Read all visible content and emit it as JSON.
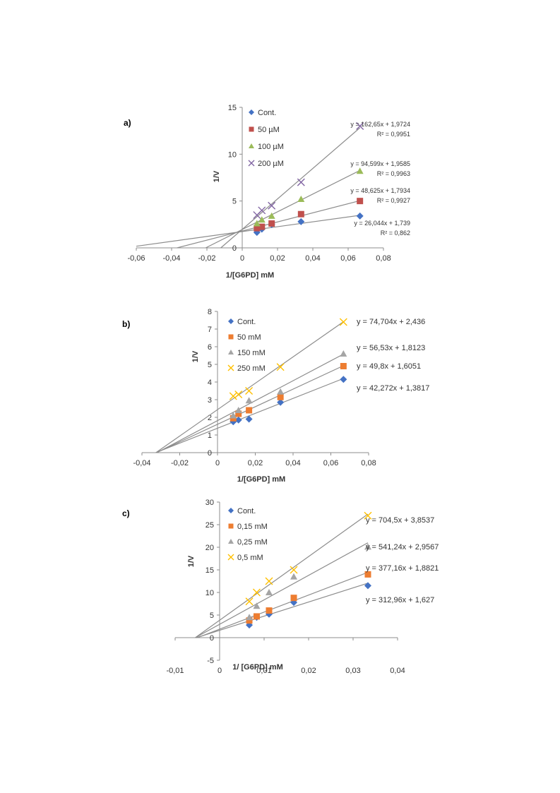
{
  "chart_data": [
    {
      "type": "scatter",
      "panel_label": "a)",
      "xlabel": "1/[G6PD] mM",
      "ylabel": "1/V",
      "xlim": [
        -0.06,
        0.08
      ],
      "ylim": [
        0,
        15
      ],
      "xticks": [
        "-0,06",
        "-0,04",
        "-0,02",
        "0",
        "0,02",
        "0,04",
        "0,06",
        "0,08"
      ],
      "yticks": [
        "0",
        "5",
        "10",
        "15"
      ],
      "grid": false,
      "legend_position": "top-left",
      "series": [
        {
          "name": "Cont.",
          "marker": "diamond",
          "color": "#4472c4",
          "x": [
            0.00833,
            0.01111,
            0.01667,
            0.03333,
            0.06667
          ],
          "y": [
            1.65,
            2.0,
            2.5,
            2.8,
            3.4
          ],
          "trend": {
            "slope": 26.044,
            "intercept": 1.739
          },
          "equation": "y = 26,044x + 1,739",
          "r2": "R² = 0,862"
        },
        {
          "name": "50 µM",
          "marker": "square",
          "color": "#c0504d",
          "x": [
            0.00833,
            0.01111,
            0.01667,
            0.03333,
            0.06667
          ],
          "y": [
            2.1,
            2.25,
            2.6,
            3.6,
            5.0
          ],
          "trend": {
            "slope": 48.625,
            "intercept": 1.7934
          },
          "equation": "y = 48,625x + 1,7934",
          "r2": "R² = 0,9927"
        },
        {
          "name": "100 µM",
          "marker": "triangle",
          "color": "#9bbb59",
          "x": [
            0.00833,
            0.01111,
            0.01667,
            0.03333,
            0.06667
          ],
          "y": [
            2.6,
            3.0,
            3.4,
            5.2,
            8.2
          ],
          "trend": {
            "slope": 94.599,
            "intercept": 1.9585
          },
          "equation": "y = 94,599x + 1,9585",
          "r2": "R² = 0,9963"
        },
        {
          "name": "200 µM",
          "marker": "x",
          "color": "#8064a2",
          "x": [
            0.00833,
            0.01111,
            0.01667,
            0.03333,
            0.06667
          ],
          "y": [
            3.5,
            4.0,
            4.5,
            7.0,
            13.0
          ],
          "trend": {
            "slope": 162.65,
            "intercept": 1.9724
          },
          "equation": "y = 162,65x + 1,9724",
          "r2": "R² = 0,9951"
        }
      ]
    },
    {
      "type": "scatter",
      "panel_label": "b)",
      "xlabel": "1/[G6PD] mM",
      "ylabel": "1/V",
      "xlim": [
        -0.04,
        0.08
      ],
      "ylim": [
        0,
        8
      ],
      "xticks": [
        "-0,04",
        "-0,02",
        "0",
        "0,02",
        "0,04",
        "0,06",
        "0,08"
      ],
      "yticks": [
        "0",
        "1",
        "2",
        "3",
        "4",
        "5",
        "6",
        "7",
        "8"
      ],
      "grid": false,
      "legend_position": "top-left",
      "series": [
        {
          "name": "Cont.",
          "marker": "diamond",
          "color": "#4472c4",
          "x": [
            0.00833,
            0.01111,
            0.01667,
            0.03333,
            0.06667
          ],
          "y": [
            1.75,
            1.85,
            1.9,
            2.85,
            4.15
          ],
          "trend": {
            "slope": 42.272,
            "intercept": 1.3817
          },
          "equation": "y = 42,272x + 1,3817"
        },
        {
          "name": "50 mM",
          "marker": "square",
          "color": "#ed7d31",
          "x": [
            0.00833,
            0.01111,
            0.01667,
            0.03333,
            0.06667
          ],
          "y": [
            1.95,
            2.2,
            2.4,
            3.15,
            4.9
          ],
          "trend": {
            "slope": 49.8,
            "intercept": 1.6051
          },
          "equation": "y = 49,8x + 1,6051"
        },
        {
          "name": "150 mM",
          "marker": "triangle",
          "color": "#a5a5a5",
          "x": [
            0.00833,
            0.01111,
            0.01667,
            0.03333,
            0.06667
          ],
          "y": [
            2.1,
            2.4,
            2.95,
            3.45,
            5.6
          ],
          "trend": {
            "slope": 56.53,
            "intercept": 1.8123
          },
          "equation": "y = 56,53x + 1,8123"
        },
        {
          "name": "250 mM",
          "marker": "x",
          "color": "#ffc000",
          "x": [
            0.00833,
            0.01111,
            0.01667,
            0.03333,
            0.06667
          ],
          "y": [
            3.2,
            3.3,
            3.5,
            4.85,
            7.4
          ],
          "trend": {
            "slope": 74.704,
            "intercept": 2.436
          },
          "equation": "y = 74,704x + 2,436"
        }
      ]
    },
    {
      "type": "scatter",
      "panel_label": "c)",
      "xlabel": "1/ [G6PD] mM",
      "ylabel": "1/V",
      "xlim": [
        -0.01,
        0.04
      ],
      "ylim": [
        -5,
        30
      ],
      "xticks": [
        "-0,01",
        "0",
        "0,01",
        "0,02",
        "0,03",
        "0,04"
      ],
      "yticks": [
        "-5",
        "0",
        "5",
        "10",
        "15",
        "20",
        "25",
        "30"
      ],
      "grid": false,
      "legend_position": "top-left",
      "series": [
        {
          "name": "Cont.",
          "marker": "diamond",
          "color": "#4472c4",
          "x": [
            0.00667,
            0.00833,
            0.01111,
            0.01667,
            0.03333
          ],
          "y": [
            2.8,
            4.5,
            5.2,
            7.8,
            11.5
          ],
          "trend": {
            "slope": 312.96,
            "intercept": 1.627
          },
          "equation": "y = 312,96x + 1,627"
        },
        {
          "name": "0,15 mM",
          "marker": "square",
          "color": "#ed7d31",
          "x": [
            0.00667,
            0.00833,
            0.01111,
            0.01667,
            0.03333
          ],
          "y": [
            3.8,
            4.7,
            6.0,
            8.8,
            14.0
          ],
          "trend": {
            "slope": 377.16,
            "intercept": 1.8821
          },
          "equation": "y = 377,16x + 1,8821"
        },
        {
          "name": "0,25 mM",
          "marker": "triangle",
          "color": "#a5a5a5",
          "x": [
            0.00667,
            0.00833,
            0.01111,
            0.01667,
            0.03333
          ],
          "y": [
            4.5,
            7.0,
            10.0,
            13.5,
            20.1
          ],
          "trend": {
            "slope": 541.24,
            "intercept": 2.9567
          },
          "equation": "y = 541,24x + 2,9567"
        },
        {
          "name": "0,5 mM",
          "marker": "x",
          "color": "#ffc000",
          "x": [
            0.00667,
            0.00833,
            0.01111,
            0.01667,
            0.03333
          ],
          "y": [
            8.0,
            10.0,
            12.5,
            15.0,
            27.0
          ],
          "trend": {
            "slope": 704.5,
            "intercept": 3.8537
          },
          "equation": "y = 704,5x + 3,8537"
        }
      ]
    }
  ]
}
